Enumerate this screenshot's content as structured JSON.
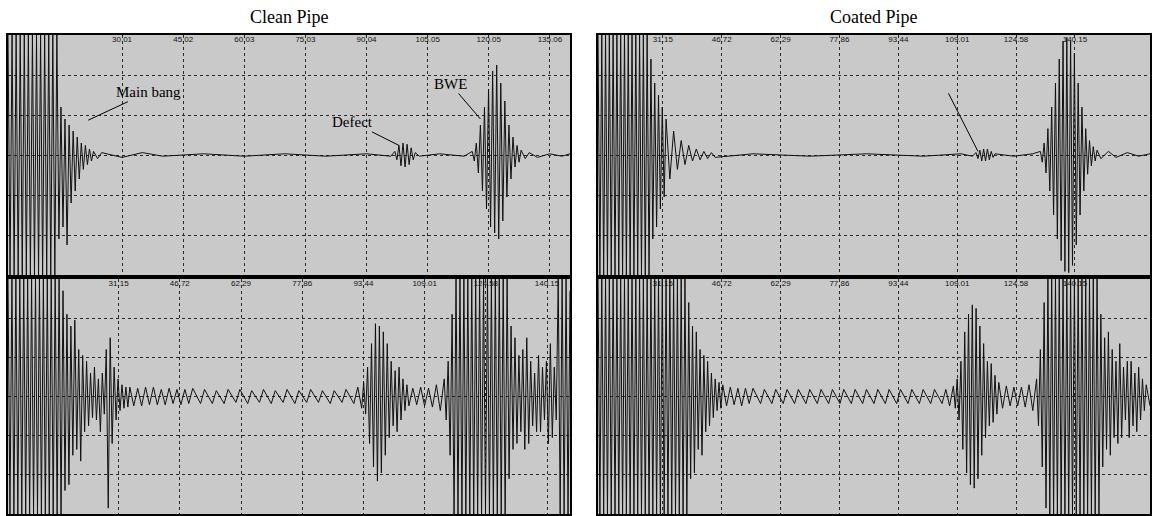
{
  "chart_data": [
    {
      "type": "line",
      "title": "Clean Pipe",
      "color": "#111111",
      "grid": true,
      "tick_labels": "x",
      "xlim": [
        2,
        140
      ],
      "ylim": [
        -100,
        100
      ],
      "xticks": [
        30.01,
        45.02,
        60.03,
        75.03,
        90.04,
        105.05,
        120.05,
        135.06
      ],
      "yticks": [
        -66.67,
        -33.33,
        0,
        33.33,
        66.67
      ],
      "x": [
        2,
        2.5,
        3,
        3.5,
        4,
        4.5,
        5,
        5.5,
        6,
        6.5,
        7,
        7.5,
        8,
        8.5,
        9,
        9.5,
        10,
        10.5,
        11,
        11.5,
        12,
        12.5,
        13,
        13.5,
        14,
        14.5,
        15,
        15.5,
        16,
        16.5,
        17,
        17.5,
        18,
        18.5,
        19,
        19.5,
        20,
        20.5,
        21,
        21.5,
        22,
        22.5,
        23,
        24,
        25,
        30,
        35,
        40,
        50,
        60,
        70,
        80,
        90,
        96,
        97,
        97.5,
        98,
        98.5,
        99,
        99.5,
        100,
        100.5,
        101,
        101.5,
        102,
        103,
        108,
        114,
        116,
        116.5,
        117,
        117.5,
        118,
        118.5,
        119,
        119.5,
        120,
        120.5,
        121,
        121.5,
        122,
        122.5,
        123,
        123.5,
        124,
        124.5,
        125,
        125.5,
        126,
        126.5,
        127,
        127.5,
        128,
        129,
        130,
        132,
        135,
        138,
        140
      ],
      "values": [
        100,
        -100,
        100,
        -100,
        100,
        -100,
        100,
        -100,
        100,
        -100,
        100,
        -100,
        100,
        -100,
        100,
        -100,
        100,
        -100,
        100,
        -100,
        100,
        -100,
        100,
        -100,
        100,
        -70,
        40,
        -60,
        30,
        -75,
        25,
        -40,
        20,
        -30,
        15,
        -20,
        10,
        -12,
        8,
        -8,
        5,
        -5,
        3,
        -3,
        2,
        -2,
        2,
        -1,
        1,
        -1,
        1,
        -1,
        1,
        -1,
        3,
        -4,
        8,
        -9,
        10,
        -10,
        9,
        -8,
        6,
        -4,
        2,
        -1,
        1,
        -1,
        3,
        -5,
        10,
        -15,
        25,
        -30,
        40,
        -45,
        55,
        -60,
        70,
        -65,
        75,
        -70,
        60,
        -55,
        45,
        -35,
        25,
        -20,
        15,
        -10,
        8,
        -6,
        4,
        -3,
        2,
        -2,
        1,
        -1,
        1
      ],
      "annotations": [
        {
          "text": "Main bang",
          "x": 21.7,
          "y": 29
        },
        {
          "text": "Defect",
          "x": 98,
          "y": 8
        },
        {
          "text": "BWE",
          "x": 118,
          "y": 30
        }
      ]
    },
    {
      "type": "line",
      "title": "Coated Pipe",
      "color": "#111111",
      "grid": true,
      "tick_labels": "x",
      "xlim": [
        14,
        160
      ],
      "ylim": [
        -100,
        100
      ],
      "xticks": [
        31.15,
        46.72,
        62.29,
        77.86,
        93.44,
        109.01,
        124.58,
        140.15
      ],
      "yticks": [
        -66.67,
        -33.33,
        0,
        33.33,
        66.67
      ],
      "x": [
        14,
        14.5,
        15,
        15.5,
        16,
        16.5,
        17,
        17.5,
        18,
        18.5,
        19,
        19.5,
        20,
        20.5,
        21,
        21.5,
        22,
        22.5,
        23,
        23.5,
        24,
        24.5,
        25,
        25.5,
        26,
        26.5,
        27,
        27.5,
        28,
        28.5,
        29,
        29.5,
        30,
        30.5,
        31,
        31.5,
        32,
        33,
        34,
        35,
        36,
        37,
        38,
        39,
        40,
        41,
        42,
        43,
        44,
        45,
        55,
        70,
        85,
        100,
        110,
        113,
        114,
        114.5,
        115,
        115.5,
        116,
        116.5,
        117,
        117.5,
        118,
        118.5,
        119,
        124,
        129,
        131,
        131.5,
        132,
        132.5,
        133,
        133.5,
        134,
        134.5,
        135,
        135.5,
        136,
        136.5,
        137,
        137.5,
        138,
        138.5,
        139,
        139.5,
        140,
        140.5,
        141,
        141.5,
        142,
        142.5,
        143,
        143.5,
        144,
        144.5,
        145,
        145.5,
        146,
        147,
        149,
        151,
        154,
        157,
        160
      ],
      "values": [
        100,
        -100,
        100,
        -100,
        100,
        -100,
        100,
        -100,
        100,
        -100,
        100,
        -100,
        100,
        -100,
        100,
        -100,
        100,
        -100,
        100,
        -100,
        100,
        -100,
        100,
        -100,
        100,
        -100,
        100,
        -100,
        80,
        -70,
        60,
        -60,
        50,
        -45,
        40,
        -35,
        30,
        -20,
        20,
        -12,
        12,
        -8,
        8,
        -5,
        5,
        -4,
        3,
        -3,
        2,
        -2,
        1,
        -1,
        1,
        -1,
        1,
        -1,
        2,
        -3,
        4,
        -5,
        5,
        -5,
        5,
        -4,
        3,
        -2,
        1,
        -1,
        1,
        3,
        -6,
        10,
        -15,
        22,
        -30,
        40,
        -50,
        60,
        -70,
        80,
        -88,
        95,
        -97,
        98,
        -98,
        95,
        -92,
        85,
        -75,
        60,
        -50,
        40,
        -30,
        22,
        -16,
        12,
        -9,
        7,
        -5,
        4,
        -3,
        3,
        -2,
        2,
        -1,
        1
      ],
      "annotations": [
        {
          "x": 114.5,
          "y": 3
        }
      ]
    },
    {
      "type": "line",
      "color": "#111111",
      "grid": true,
      "tick_labels": "x",
      "xlim": [
        3,
        146
      ],
      "ylim": [
        -100,
        100
      ],
      "xticks": [
        31.15,
        46.72,
        62.29,
        77.86,
        93.44,
        109.01,
        124.58,
        140.15
      ],
      "yticks": [
        -66.67,
        -33.33,
        0,
        33.33,
        66.67
      ],
      "x": [
        3,
        3.5,
        4,
        4.5,
        5,
        5.5,
        6,
        6.5,
        7,
        7.5,
        8,
        8.5,
        9,
        9.5,
        10,
        10.5,
        11,
        11.5,
        12,
        12.5,
        13,
        13.5,
        14,
        14.5,
        15,
        15.5,
        16,
        16.5,
        17,
        17.5,
        18,
        18.5,
        19,
        19.5,
        20,
        20.5,
        21,
        21.5,
        22,
        22.5,
        23,
        23.5,
        24,
        24.5,
        25,
        25.5,
        26,
        26.5,
        27,
        27.5,
        28,
        28.5,
        29,
        29.5,
        30,
        30.5,
        31,
        31.5,
        32,
        32.5,
        33,
        33.5,
        34,
        35,
        36,
        37,
        38,
        39,
        40,
        41,
        42,
        43,
        44,
        45,
        46,
        47,
        48,
        49,
        50,
        52,
        53,
        55,
        56,
        58,
        59,
        61,
        62,
        64,
        65,
        67,
        68,
        70,
        71,
        73,
        74,
        76,
        77,
        79,
        80,
        82,
        83,
        85,
        86,
        88,
        89,
        91,
        92,
        93,
        93.5,
        94,
        94.5,
        95,
        95.5,
        96,
        96.5,
        97,
        97.5,
        98,
        98.5,
        99,
        99.5,
        100,
        100.5,
        101,
        101.5,
        102,
        102.5,
        103,
        103.5,
        104,
        104.5,
        105,
        106,
        107,
        108,
        109,
        110,
        111,
        112,
        113,
        114,
        114.5,
        115,
        115.5,
        116,
        116.5,
        117,
        117.5,
        118,
        118.5,
        119,
        119.5,
        120,
        120.5,
        121,
        121.5,
        122,
        122.5,
        123,
        123.5,
        124,
        124.5,
        125,
        125.5,
        126,
        126.5,
        127,
        127.5,
        128,
        128.5,
        129,
        129.5,
        130,
        130.5,
        131,
        131.5,
        132,
        132.5,
        133,
        133.5,
        134,
        134.5,
        135,
        135.5,
        136,
        136.5,
        137,
        137.5,
        138,
        138.5,
        139,
        139.5,
        140,
        140.5,
        141,
        141.5,
        142,
        142.5,
        143,
        143.5,
        144,
        144.5,
        145,
        145.5,
        146
      ],
      "values": [
        100,
        -100,
        100,
        -100,
        100,
        -100,
        100,
        -100,
        100,
        -100,
        100,
        -100,
        100,
        -100,
        100,
        -100,
        100,
        -100,
        100,
        -100,
        100,
        -100,
        100,
        -100,
        100,
        -100,
        100,
        -100,
        90,
        -80,
        70,
        -75,
        60,
        -50,
        65,
        -45,
        40,
        -55,
        35,
        -30,
        30,
        -25,
        20,
        -18,
        25,
        -20,
        15,
        -30,
        20,
        -15,
        40,
        -95,
        50,
        -40,
        25,
        -20,
        15,
        -12,
        10,
        -10,
        8,
        -9,
        8,
        -8,
        7,
        -8,
        8,
        -7,
        8,
        -7,
        6,
        -7,
        7,
        -6,
        6,
        -7,
        6,
        -6,
        7,
        -6,
        6,
        -6,
        5,
        -6,
        6,
        -5,
        6,
        -6,
        5,
        -5,
        6,
        -6,
        5,
        -5,
        6,
        -6,
        5,
        -5,
        6,
        -5,
        5,
        -6,
        5,
        -5,
        6,
        -6,
        8,
        -10,
        12,
        -15,
        25,
        -40,
        45,
        -60,
        62,
        -72,
        60,
        -65,
        55,
        -50,
        45,
        -35,
        30,
        -25,
        22,
        -30,
        25,
        -20,
        15,
        -12,
        10,
        -8,
        7,
        -7,
        8,
        -8,
        7,
        -9,
        10,
        -12,
        15,
        -20,
        30,
        -50,
        70,
        -100,
        100,
        -100,
        100,
        -100,
        100,
        -100,
        100,
        -100,
        100,
        -100,
        100,
        -100,
        100,
        -100,
        100,
        -100,
        100,
        -100,
        100,
        -100,
        100,
        -100,
        100,
        -100,
        100,
        -100,
        100,
        -70,
        60,
        -45,
        50,
        -40,
        35,
        -30,
        40,
        -45,
        50,
        -40,
        30,
        -25,
        20,
        -30,
        35,
        -30,
        25,
        -20,
        30,
        -40,
        45,
        -35,
        25,
        -20,
        100,
        -100,
        100,
        -100,
        100,
        -100,
        90
      ]
    },
    {
      "type": "line",
      "color": "#111111",
      "grid": true,
      "tick_labels": "x",
      "xlim": [
        14,
        160
      ],
      "ylim": [
        -100,
        100
      ],
      "xticks": [
        31.15,
        46.72,
        62.29,
        77.86,
        93.44,
        109.01,
        124.58,
        140.15
      ],
      "yticks": [
        -66.67,
        -33.33,
        0,
        33.33,
        66.67
      ],
      "x": [
        14,
        14.5,
        15,
        15.5,
        16,
        16.5,
        17,
        17.5,
        18,
        18.5,
        19,
        19.5,
        20,
        20.5,
        21,
        21.5,
        22,
        22.5,
        23,
        23.5,
        24,
        24.5,
        25,
        25.5,
        26,
        26.5,
        27,
        27.5,
        28,
        28.5,
        29,
        29.5,
        30,
        30.5,
        31,
        31.5,
        32,
        32.5,
        33,
        33.5,
        34,
        34.5,
        35,
        35.5,
        36,
        36.5,
        37,
        37.5,
        38,
        38.5,
        39,
        39.5,
        40,
        40.5,
        41,
        41.5,
        42,
        42.5,
        43,
        43.5,
        44,
        44.5,
        45,
        45.5,
        46,
        46.5,
        47,
        48,
        49,
        50,
        51,
        52,
        53,
        54,
        55,
        57,
        58,
        60,
        61,
        63,
        64,
        66,
        67,
        69,
        70,
        72,
        73,
        75,
        76,
        78,
        79,
        81,
        82,
        84,
        85,
        87,
        88,
        90,
        91,
        93,
        94,
        96,
        97,
        99,
        100,
        102,
        103,
        105,
        106,
        107,
        108,
        108.5,
        109,
        109.5,
        110,
        110.5,
        111,
        111.5,
        112,
        112.5,
        113,
        113.5,
        114,
        114.5,
        115,
        115.5,
        116,
        116.5,
        117,
        117.5,
        118,
        118.5,
        119,
        119.5,
        120,
        121,
        122,
        123,
        124,
        125,
        126,
        127,
        128,
        129,
        130,
        130.5,
        131,
        131.5,
        132,
        132.5,
        133,
        133.5,
        134,
        134.5,
        135,
        135.5,
        136,
        136.5,
        137,
        137.5,
        138,
        138.5,
        139,
        139.5,
        140,
        140.5,
        141,
        141.5,
        142,
        142.5,
        143,
        143.5,
        144,
        144.5,
        145,
        145.5,
        146,
        146.5,
        147,
        147.5,
        148,
        148.5,
        149,
        149.5,
        150,
        150.5,
        151,
        151.5,
        152,
        152.5,
        153,
        153.5,
        154,
        154.5,
        155,
        155.5,
        156,
        156.5,
        157,
        157.5,
        158,
        158.5,
        159,
        160
      ],
      "values": [
        100,
        -100,
        100,
        -100,
        100,
        -100,
        100,
        -100,
        100,
        -100,
        100,
        -100,
        100,
        -100,
        100,
        -100,
        100,
        -100,
        100,
        -100,
        100,
        -100,
        100,
        -100,
        100,
        -100,
        100,
        -100,
        100,
        -100,
        100,
        -100,
        100,
        -100,
        100,
        -100,
        100,
        -100,
        100,
        -100,
        100,
        -100,
        100,
        -100,
        100,
        -100,
        100,
        -100,
        80,
        -70,
        60,
        -65,
        55,
        -45,
        40,
        -50,
        35,
        -30,
        30,
        -25,
        20,
        -18,
        15,
        -12,
        12,
        -10,
        10,
        -8,
        8,
        -7,
        7,
        -8,
        7,
        -6,
        7,
        -6,
        6,
        -6,
        6,
        -6,
        6,
        -6,
        6,
        -6,
        6,
        -6,
        6,
        -6,
        6,
        -6,
        6,
        -6,
        6,
        -6,
        6,
        -6,
        6,
        -6,
        6,
        -6,
        6,
        -6,
        6,
        -6,
        6,
        -6,
        6,
        -6,
        6,
        -8,
        9,
        -10,
        15,
        -20,
        30,
        -45,
        55,
        -65,
        70,
        -75,
        78,
        -78,
        75,
        -70,
        60,
        -50,
        45,
        -35,
        30,
        -25,
        28,
        -22,
        18,
        -15,
        12,
        -10,
        9,
        -8,
        8,
        -8,
        8,
        -9,
        10,
        -12,
        15,
        -25,
        40,
        -60,
        80,
        -95,
        100,
        -100,
        100,
        -100,
        100,
        -100,
        100,
        -100,
        100,
        -100,
        100,
        -100,
        100,
        -100,
        100,
        -100,
        100,
        -100,
        100,
        -100,
        100,
        -100,
        100,
        -100,
        100,
        -100,
        100,
        -100,
        70,
        -60,
        50,
        -45,
        55,
        -50,
        40,
        -35,
        30,
        -40,
        45,
        -35,
        25,
        -20,
        30,
        -35,
        30,
        -25,
        20,
        -30,
        25,
        -20,
        15,
        -12,
        10,
        -8
      ]
    }
  ]
}
